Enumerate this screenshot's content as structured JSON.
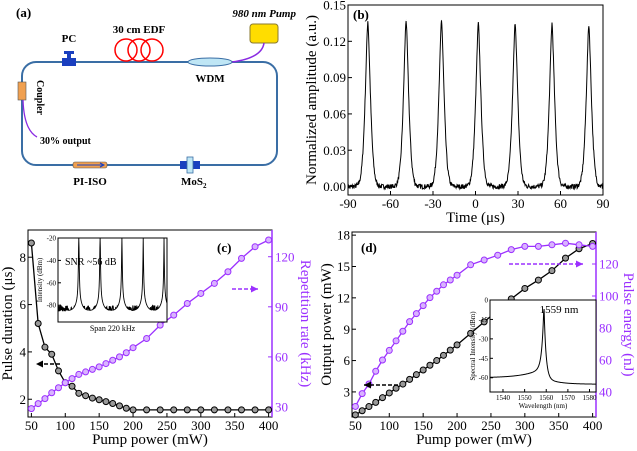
{
  "panel_a": {
    "label": "(a)",
    "pump": "980 nm Pump",
    "edf": "30 cm EDF",
    "pc": "PC",
    "wdm": "WDM",
    "coupler": "Coupler",
    "output": "30% output",
    "isolator": "PI-ISO",
    "sa": "MoS",
    "sa_sub": "2",
    "colors": {
      "fiber": "#3a6ea5",
      "pump": "#ffdd00",
      "edf": "#ff0000",
      "coupler": "#f0a050",
      "lead": "#8a2be2",
      "pc": "#1a3fbf"
    }
  },
  "chart_data": [
    {
      "id": "b",
      "type": "line",
      "panel_label": "(b)",
      "xlabel": "Time (μs)",
      "ylabel": "Normalized amplitude (a.u.)",
      "xlim": [
        -90,
        90
      ],
      "ylim": [
        -0.007,
        0.15
      ],
      "xticks": [
        "-90",
        "-60",
        "-30",
        "0",
        "30",
        "60",
        "90"
      ],
      "yticks": [
        "0.00",
        "0.03",
        "0.06",
        "0.09",
        "0.12",
        "0.15"
      ],
      "series": [
        {
          "peak_times": [
            -76,
            -49,
            -24,
            2,
            28,
            54,
            80
          ],
          "peak_values": [
            0.137,
            0.138,
            0.138,
            0.135,
            0.136,
            0.135,
            0.134
          ],
          "baseline": 0.0
        }
      ],
      "color": "#000000"
    },
    {
      "id": "c",
      "type": "line",
      "panel_label": "(c)",
      "xlabel": "Pump power (mW)",
      "ylabel": "Pulse duration (μs)",
      "y2label": "Repetition rate (kHz)",
      "xlim": [
        45,
        405
      ],
      "ylim": [
        1.25,
        9.15
      ],
      "y2lim": [
        24,
        136
      ],
      "xticks": [
        "50",
        "100",
        "150",
        "200",
        "250",
        "300",
        "350",
        "400"
      ],
      "yticks": [
        "2",
        "4",
        "6",
        "8"
      ],
      "y2ticks": [
        "30",
        "60",
        "90",
        "120"
      ],
      "x": [
        50,
        60,
        70,
        80,
        90,
        100,
        110,
        120,
        130,
        140,
        150,
        160,
        170,
        180,
        190,
        200,
        220,
        240,
        260,
        280,
        300,
        320,
        340,
        360,
        380,
        400
      ],
      "series": [
        {
          "name": "Pulse duration",
          "axis": "left",
          "color": "#000000",
          "values": [
            8.6,
            5.2,
            4.2,
            3.9,
            3.2,
            2.7,
            2.55,
            2.25,
            2.15,
            2.05,
            1.98,
            1.9,
            1.82,
            1.72,
            1.62,
            1.55,
            1.55,
            1.55,
            1.55,
            1.55,
            1.55,
            1.55,
            1.55,
            1.55,
            1.55,
            1.55
          ]
        },
        {
          "name": "Repetition rate",
          "axis": "right",
          "color": "#9b30ff",
          "values": [
            29,
            32,
            35,
            38.5,
            41.5,
            44.5,
            47,
            49.5,
            51,
            52.5,
            54,
            56,
            58,
            60,
            62.5,
            65.5,
            71,
            79,
            85,
            92,
            98,
            104,
            111,
            119,
            126,
            130
          ]
        }
      ],
      "inset": {
        "type": "line",
        "ylabel": "Intensity (dBm)",
        "xlabel": "Span 220 kHz",
        "annotation": "SNR ~56 dB",
        "xlim": [
          0,
          220
        ],
        "ylim": [
          -95,
          -20
        ],
        "yticks": [
          "-20",
          "-40",
          "-60",
          "-80"
        ],
        "peaks_khz": [
          42,
          85,
          129,
          172,
          214
        ],
        "peak_dbm": [
          -22,
          -22,
          -30,
          -37,
          -40
        ],
        "noise_floor_dbm": -85
      }
    },
    {
      "id": "d",
      "type": "line",
      "panel_label": "(d)",
      "xlabel": "Pump power (mW)",
      "ylabel": "Output power (mW)",
      "y2label": "Pulse energy (nJ)",
      "xlim": [
        45,
        405
      ],
      "ylim": [
        0.6,
        18.3
      ],
      "y2lim": [
        24.4,
        140
      ],
      "xticks": [
        "50",
        "100",
        "150",
        "200",
        "250",
        "300",
        "350",
        "400"
      ],
      "yticks": [
        "3",
        "6",
        "9",
        "12",
        "15",
        "18"
      ],
      "y2ticks": [
        "40",
        "60",
        "80",
        "100",
        "120"
      ],
      "x": [
        50,
        60,
        70,
        80,
        90,
        100,
        110,
        120,
        130,
        140,
        150,
        160,
        170,
        180,
        190,
        200,
        220,
        240,
        260,
        280,
        300,
        320,
        340,
        360,
        380,
        400
      ],
      "series": [
        {
          "name": "Output power",
          "axis": "left",
          "color": "#000000",
          "values": [
            0.8,
            1.2,
            1.6,
            2.0,
            2.45,
            2.9,
            3.35,
            3.75,
            4.2,
            4.65,
            5.1,
            5.55,
            6.0,
            6.5,
            7.0,
            7.5,
            8.6,
            9.7,
            10.8,
            11.9,
            12.9,
            13.7,
            14.6,
            15.8,
            16.7,
            17.2
          ]
        },
        {
          "name": "Pulse energy",
          "axis": "right",
          "color": "#9b30ff",
          "values": [
            31,
            39,
            45,
            53,
            60,
            66,
            72,
            78,
            84,
            89,
            94,
            99,
            103,
            107,
            110,
            113,
            119.5,
            122.5,
            125.5,
            129,
            131,
            131,
            132,
            133,
            132,
            131
          ]
        }
      ],
      "inset": {
        "type": "line",
        "ylabel": "Spectral Intensity (dBm)",
        "xlabel": "Wavelength (nm)",
        "annotation": "1559 nm",
        "xlim": [
          1534,
          1583
        ],
        "ylim": [
          -71,
          0
        ],
        "xticks": [
          "1540",
          "1550",
          "1560",
          "1570",
          "1580"
        ],
        "yticks": [
          "0",
          "-15",
          "-30",
          "-45",
          "-60"
        ],
        "peak_nm": 1559,
        "peak_dbm": -7
      }
    }
  ]
}
